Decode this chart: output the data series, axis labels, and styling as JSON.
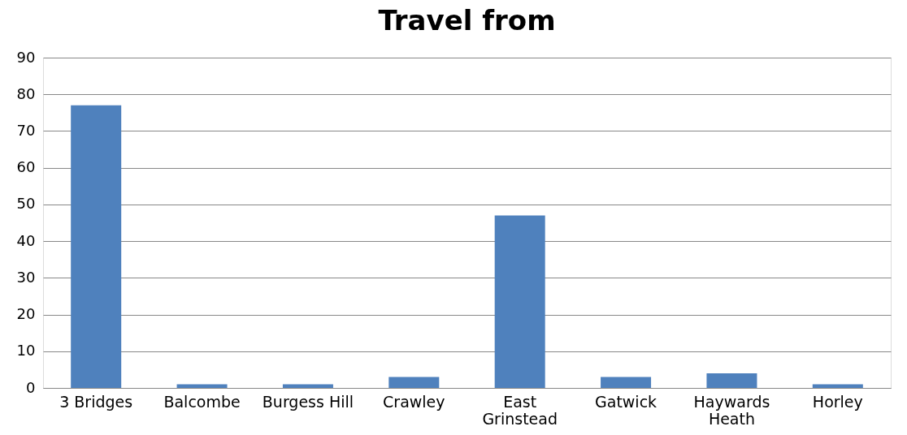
{
  "chart_data": {
    "type": "bar",
    "title": "Travel from",
    "categories": [
      "3 Bridges",
      "Balcombe",
      "Burgess Hill",
      "Crawley",
      "East Grinstead",
      "Gatwick",
      "Haywards Heath",
      "Horley"
    ],
    "values": [
      77,
      1,
      1,
      3,
      47,
      3,
      4,
      1
    ],
    "color": "#4f81bd",
    "ylim": [
      0,
      90
    ],
    "yticks": [
      0,
      10,
      20,
      30,
      40,
      50,
      60,
      70,
      80,
      90
    ],
    "grid": "y"
  }
}
